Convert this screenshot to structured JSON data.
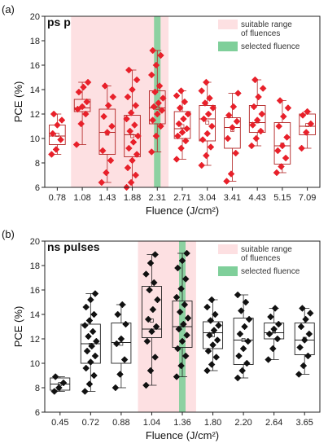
{
  "chart_data": [
    {
      "type": "box",
      "panel_label": "(a)",
      "title": "ps pulses",
      "xlabel": "Fluence (J/cm²)",
      "ylabel": "PCE (%)",
      "ylim": [
        6,
        20
      ],
      "yticks": [
        6,
        8,
        10,
        12,
        14,
        16,
        18,
        20
      ],
      "categories": [
        "0.78",
        "1.08",
        "1.43",
        "1.88",
        "2.31",
        "2.71",
        "3.04",
        "3.41",
        "4.43",
        "5.15",
        "7.09"
      ],
      "color": "#e8202a",
      "box_color": "#b22222",
      "suitable_range": {
        "from": "1.08",
        "to": "2.31",
        "color": "#fde0e2"
      },
      "selected_fluence": {
        "value": "2.31",
        "color": "#7fcf9a"
      },
      "legend": {
        "suitable": "suitable range\nof fluences",
        "selected": "selected fluence"
      },
      "boxes": [
        {
          "q1": 9.5,
          "median": 10.2,
          "q3": 11.1,
          "min": 8.7,
          "max": 12.0,
          "mean": 10.3
        },
        {
          "q1": 12.2,
          "median": 12.5,
          "q3": 13.2,
          "min": 9.5,
          "max": 14.6,
          "mean": 12.6
        },
        {
          "q1": 8.7,
          "median": 10.5,
          "q3": 12.4,
          "min": 6.4,
          "max": 14.3,
          "mean": 10.4
        },
        {
          "q1": 8.5,
          "median": 10.3,
          "q3": 11.9,
          "min": 6.0,
          "max": 15.6,
          "mean": 10.2
        },
        {
          "q1": 11.2,
          "median": 12.5,
          "q3": 13.9,
          "min": 8.9,
          "max": 17.2,
          "mean": 12.5
        },
        {
          "q1": 10.0,
          "median": 10.8,
          "q3": 12.2,
          "min": 8.3,
          "max": 13.9,
          "mean": 11.0
        },
        {
          "q1": 9.8,
          "median": 11.6,
          "q3": 12.7,
          "min": 7.8,
          "max": 14.6,
          "mean": 11.3
        },
        {
          "q1": 9.2,
          "median": 10.9,
          "q3": 11.7,
          "min": 6.5,
          "max": 13.7,
          "mean": 10.7
        },
        {
          "q1": 10.5,
          "median": 11.3,
          "q3": 12.7,
          "min": 9.4,
          "max": 14.8,
          "mean": 11.4
        },
        {
          "q1": 7.9,
          "median": 9.4,
          "q3": 11.3,
          "min": 7.2,
          "max": 13.1,
          "mean": 9.5
        },
        {
          "q1": 10.3,
          "median": 11.0,
          "q3": 12.0,
          "min": 9.2,
          "max": 12.2,
          "mean": 11.1
        }
      ],
      "points": [
        [
          8.7,
          9.1,
          9.9,
          10.4,
          11.1,
          11.5,
          12.0
        ],
        [
          9.5,
          11.2,
          12.0,
          12.4,
          12.6,
          13.0,
          13.8,
          14.2,
          14.6
        ],
        [
          6.4,
          7.2,
          8.2,
          9.0,
          10.5,
          11.0,
          11.8,
          12.7,
          13.4,
          14.3
        ],
        [
          6.0,
          6.4,
          7.0,
          7.6,
          8.2,
          8.7,
          9.2,
          9.7,
          10.2,
          10.6,
          11.1,
          11.6,
          12.1,
          12.7,
          13.4,
          14.0,
          14.8,
          15.6
        ],
        [
          8.9,
          10.2,
          11.0,
          11.5,
          12.0,
          12.3,
          12.6,
          12.9,
          13.3,
          13.8,
          14.3,
          15.2,
          16.0,
          16.8,
          17.2
        ],
        [
          8.3,
          9.2,
          9.8,
          10.2,
          10.5,
          10.8,
          11.2,
          11.6,
          12.0,
          12.5,
          13.0,
          13.5,
          13.9
        ],
        [
          7.8,
          8.6,
          9.3,
          9.9,
          10.4,
          11.0,
          11.6,
          12.0,
          12.5,
          12.9,
          13.3,
          13.9,
          14.6
        ],
        [
          6.5,
          7.1,
          8.8,
          10.0,
          10.9,
          11.4,
          11.9,
          12.6,
          13.7
        ],
        [
          9.4,
          10.0,
          10.6,
          11.1,
          11.5,
          12.0,
          12.6,
          13.4,
          14.1,
          14.8
        ],
        [
          7.2,
          7.7,
          8.4,
          9.0,
          9.4,
          10.1,
          11.0,
          11.8,
          12.5,
          13.1
        ],
        [
          9.2,
          10.5,
          11.2,
          11.9,
          12.2
        ]
      ]
    },
    {
      "type": "box",
      "panel_label": "(b)",
      "title": "ns pulses",
      "xlabel": "Fluence (J/cm²)",
      "ylabel": "PCE (%)",
      "ylim": [
        6,
        20
      ],
      "yticks": [
        6,
        8,
        10,
        12,
        14,
        16,
        18,
        20
      ],
      "categories": [
        "0.45",
        "0.72",
        "0.88",
        "1.04",
        "1.36",
        "1.80",
        "2.20",
        "2.64",
        "3.65"
      ],
      "color": "#111111",
      "box_color": "#222222",
      "suitable_range": {
        "from": "1.04",
        "to": "1.36",
        "color": "#fde0e2"
      },
      "selected_fluence": {
        "value": "1.36",
        "color": "#7fcf9a"
      },
      "legend": {
        "suitable": "suitable range\nof fluences",
        "selected": "selected fluence"
      },
      "boxes": [
        {
          "q1": 7.8,
          "median": 8.3,
          "q3": 8.8,
          "min": 7.7,
          "max": 8.9,
          "mean": 8.3
        },
        {
          "q1": 10.0,
          "median": 11.6,
          "q3": 13.2,
          "min": 7.7,
          "max": 15.7,
          "mean": 11.5
        },
        {
          "q1": 10.0,
          "median": 11.7,
          "q3": 13.3,
          "min": 8.0,
          "max": 14.8,
          "mean": 11.6
        },
        {
          "q1": 12.1,
          "median": 12.8,
          "q3": 16.3,
          "min": 8.2,
          "max": 18.9,
          "mean": 13.5
        },
        {
          "q1": 11.3,
          "median": 13.0,
          "q3": 15.1,
          "min": 8.9,
          "max": 19.0,
          "mean": 13.1
        },
        {
          "q1": 11.2,
          "median": 12.5,
          "q3": 13.4,
          "min": 9.4,
          "max": 15.2,
          "mean": 12.3
        },
        {
          "q1": 9.9,
          "median": 11.9,
          "q3": 13.7,
          "min": 8.8,
          "max": 15.6,
          "mean": 11.9
        },
        {
          "q1": 12.0,
          "median": 12.5,
          "q3": 13.3,
          "min": 10.3,
          "max": 14.5,
          "mean": 12.6
        },
        {
          "q1": 10.7,
          "median": 11.9,
          "q3": 13.3,
          "min": 9.1,
          "max": 14.5,
          "mean": 12.0
        }
      ],
      "points": [
        [
          7.7,
          8.0,
          8.4,
          8.9
        ],
        [
          7.7,
          8.3,
          9.0,
          9.6,
          10.1,
          10.6,
          11.0,
          11.4,
          11.8,
          12.2,
          12.6,
          13.1,
          13.5,
          14.0,
          14.6,
          15.2,
          15.7
        ],
        [
          8.0,
          9.1,
          10.3,
          11.6,
          12.0,
          13.2,
          14.0,
          14.8
        ],
        [
          8.2,
          9.4,
          10.5,
          11.8,
          12.6,
          13.0,
          13.6,
          14.4,
          15.2,
          16.0,
          16.6,
          17.3,
          18.2,
          18.9
        ],
        [
          8.9,
          9.8,
          10.6,
          11.2,
          11.8,
          12.3,
          12.8,
          13.2,
          13.7,
          14.2,
          14.8,
          15.4,
          16.1,
          16.9,
          17.8,
          18.4,
          19.0
        ],
        [
          9.4,
          9.9,
          10.5,
          11.0,
          11.5,
          11.9,
          12.3,
          12.7,
          13.1,
          13.5,
          14.0,
          14.6,
          15.2
        ],
        [
          8.8,
          9.4,
          10.0,
          10.6,
          11.2,
          11.8,
          12.4,
          13.0,
          13.6,
          14.3,
          15.0,
          15.6
        ],
        [
          10.3,
          11.2,
          12.0,
          12.4,
          12.8,
          13.2,
          13.8,
          14.5
        ],
        [
          9.1,
          9.8,
          10.6,
          11.3,
          11.9,
          12.4,
          13.0,
          13.6,
          14.1,
          14.5
        ]
      ]
    }
  ]
}
